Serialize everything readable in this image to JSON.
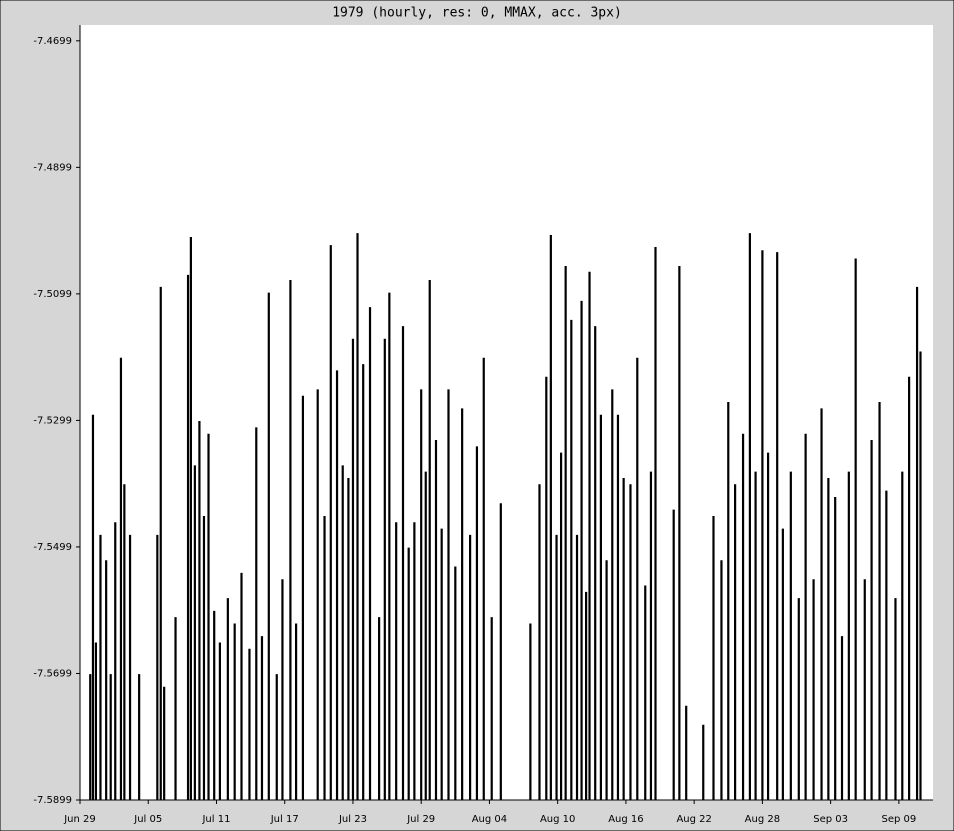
{
  "chart_data": {
    "type": "spike",
    "title": "1979 (hourly, res: 0, MMAX, acc. 3px)",
    "color": "#000000",
    "xlim": [
      0,
      75
    ],
    "xticks": [
      {
        "value": 0,
        "label": "Jun 29"
      },
      {
        "value": 6,
        "label": "Jul 05"
      },
      {
        "value": 12,
        "label": "Jul 11"
      },
      {
        "value": 18,
        "label": "Jul 17"
      },
      {
        "value": 24,
        "label": "Jul 23"
      },
      {
        "value": 30,
        "label": "Jul 29"
      },
      {
        "value": 36,
        "label": "Aug 04"
      },
      {
        "value": 42,
        "label": "Aug 10"
      },
      {
        "value": 48,
        "label": "Aug 16"
      },
      {
        "value": 54,
        "label": "Aug 22"
      },
      {
        "value": 60,
        "label": "Aug 28"
      },
      {
        "value": 66,
        "label": "Sep 03"
      },
      {
        "value": 72,
        "label": "Sep 09"
      }
    ],
    "ylim": [
      -7.5899,
      -7.4674
    ],
    "yticks": [
      -7.4699,
      -7.4899,
      -7.5099,
      -7.5299,
      -7.5499,
      -7.5699,
      -7.5899
    ],
    "x": [
      0.9,
      1.14,
      1.4,
      1.8,
      2.3,
      2.7,
      3.1,
      3.6,
      3.9,
      4.4,
      5.2,
      6.8,
      7.1,
      7.4,
      8.4,
      9.5,
      9.75,
      10.1,
      10.5,
      10.9,
      11.3,
      11.8,
      12.3,
      13.0,
      13.6,
      14.2,
      14.9,
      15.5,
      16.0,
      16.6,
      17.3,
      17.8,
      18.5,
      19.0,
      19.6,
      20.9,
      21.5,
      22.05,
      22.6,
      23.1,
      23.6,
      24.0,
      24.4,
      24.9,
      25.5,
      26.3,
      26.8,
      27.2,
      27.8,
      28.4,
      28.9,
      29.4,
      30.0,
      30.4,
      30.75,
      31.3,
      31.8,
      32.4,
      33.0,
      33.6,
      34.3,
      34.9,
      35.5,
      36.2,
      37.0,
      39.6,
      40.4,
      41.0,
      41.4,
      41.9,
      42.3,
      42.7,
      43.2,
      43.7,
      44.1,
      44.5,
      44.8,
      45.3,
      45.8,
      46.3,
      46.8,
      47.3,
      47.8,
      48.4,
      49.0,
      49.7,
      50.2,
      50.6,
      52.2,
      52.7,
      53.3,
      54.8,
      55.7,
      56.4,
      57.0,
      57.6,
      58.3,
      58.9,
      59.4,
      60.0,
      60.5,
      61.3,
      61.8,
      62.5,
      63.2,
      63.8,
      64.5,
      65.2,
      65.8,
      66.4,
      67.0,
      67.6,
      68.2,
      69.0,
      69.6,
      70.3,
      70.9,
      71.7,
      72.3,
      72.9,
      73.6,
      73.9
    ],
    "values": [
      -7.57,
      -7.529,
      -7.565,
      -7.548,
      -7.552,
      -7.57,
      -7.546,
      -7.52,
      -7.54,
      -7.548,
      -7.57,
      -7.548,
      -7.5088,
      -7.572,
      -7.561,
      -7.5069,
      -7.5009,
      -7.537,
      -7.53,
      -7.545,
      -7.532,
      -7.56,
      -7.565,
      -7.558,
      -7.562,
      -7.554,
      -7.566,
      -7.531,
      -7.564,
      -7.5097,
      -7.57,
      -7.555,
      -7.5077,
      -7.562,
      -7.526,
      -7.525,
      -7.545,
      -7.5022,
      -7.522,
      -7.537,
      -7.539,
      -7.517,
      -7.5003,
      -7.521,
      -7.512,
      -7.561,
      -7.517,
      -7.5097,
      -7.546,
      -7.515,
      -7.55,
      -7.546,
      -7.525,
      -7.538,
      -7.5077,
      -7.533,
      -7.547,
      -7.525,
      -7.553,
      -7.528,
      -7.548,
      -7.534,
      -7.52,
      -7.561,
      -7.543,
      -7.562,
      -7.54,
      -7.523,
      -7.5006,
      -7.548,
      -7.535,
      -7.5055,
      -7.514,
      -7.548,
      -7.511,
      -7.557,
      -7.5064,
      -7.515,
      -7.529,
      -7.552,
      -7.525,
      -7.529,
      -7.539,
      -7.54,
      -7.52,
      -7.556,
      -7.538,
      -7.5025,
      -7.544,
      -7.5055,
      -7.575,
      -7.578,
      -7.545,
      -7.552,
      -7.527,
      -7.54,
      -7.532,
      -7.5003,
      -7.538,
      -7.503,
      -7.535,
      -7.5033,
      -7.547,
      -7.538,
      -7.558,
      -7.532,
      -7.555,
      -7.528,
      -7.539,
      -7.542,
      -7.564,
      -7.538,
      -7.5043,
      -7.555,
      -7.533,
      -7.527,
      -7.541,
      -7.558,
      -7.538,
      -7.523,
      -7.5088,
      -7.519
    ]
  }
}
